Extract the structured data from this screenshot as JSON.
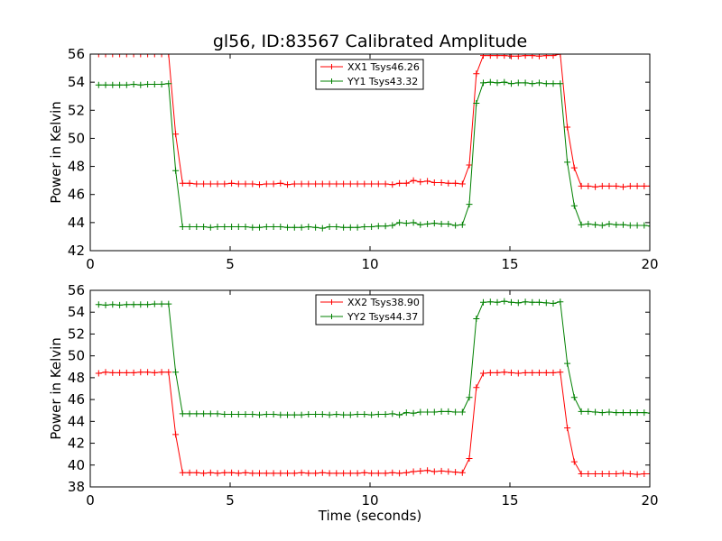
{
  "chart_data": [
    {
      "type": "line",
      "title": "gl56, ID:83567 Calibrated Amplitude",
      "xlabel": "",
      "ylabel": "Power in Kelvin",
      "xlim": [
        0,
        20
      ],
      "ylim": [
        42,
        56
      ],
      "xticks": [
        0,
        5,
        10,
        15,
        20
      ],
      "yticks": [
        42,
        44,
        46,
        48,
        50,
        52,
        54,
        56
      ],
      "legend": "top-center",
      "x": [
        0.3,
        0.55,
        0.8,
        1.05,
        1.3,
        1.55,
        1.8,
        2.05,
        2.3,
        2.55,
        2.8,
        3.05,
        3.3,
        3.55,
        3.8,
        4.05,
        4.3,
        4.55,
        4.8,
        5.05,
        5.3,
        5.55,
        5.8,
        6.05,
        6.3,
        6.55,
        6.8,
        7.05,
        7.3,
        7.55,
        7.8,
        8.05,
        8.3,
        8.55,
        8.8,
        9.05,
        9.3,
        9.55,
        9.8,
        10.05,
        10.3,
        10.55,
        10.8,
        11.05,
        11.3,
        11.55,
        11.8,
        12.05,
        12.3,
        12.55,
        12.8,
        13.05,
        13.3,
        13.55,
        13.8,
        14.05,
        14.3,
        14.55,
        14.8,
        15.05,
        15.3,
        15.55,
        15.8,
        16.05,
        16.3,
        16.55,
        16.8,
        17.05,
        17.3,
        17.55,
        17.8,
        18.05,
        18.3,
        18.55,
        18.8,
        19.05,
        19.3,
        19.55,
        19.8,
        20.05
      ],
      "series": [
        {
          "name": "XX1 Tsys46.26",
          "color": "#ff0000",
          "values": [
            56.0,
            56.0,
            56.0,
            56.0,
            56.0,
            56.0,
            56.0,
            56.0,
            56.0,
            56.0,
            56.0,
            50.3,
            46.8,
            46.8,
            46.75,
            46.75,
            46.75,
            46.75,
            46.75,
            46.8,
            46.75,
            46.75,
            46.75,
            46.7,
            46.75,
            46.75,
            46.8,
            46.7,
            46.75,
            46.75,
            46.75,
            46.75,
            46.75,
            46.75,
            46.75,
            46.75,
            46.75,
            46.75,
            46.75,
            46.75,
            46.75,
            46.75,
            46.7,
            46.8,
            46.8,
            47.0,
            46.9,
            46.95,
            46.85,
            46.85,
            46.8,
            46.8,
            46.75,
            48.1,
            54.6,
            55.9,
            55.9,
            55.9,
            55.9,
            55.85,
            55.85,
            55.9,
            55.9,
            55.85,
            55.9,
            55.9,
            56.0,
            50.8,
            47.9,
            46.6,
            46.6,
            46.55,
            46.6,
            46.6,
            46.6,
            46.55,
            46.6,
            46.6,
            46.6,
            46.6
          ]
        },
        {
          "name": "YY1 Tsys43.32",
          "color": "#008000",
          "values": [
            53.8,
            53.8,
            53.8,
            53.8,
            53.8,
            53.85,
            53.8,
            53.85,
            53.85,
            53.85,
            53.9,
            47.7,
            43.7,
            43.7,
            43.7,
            43.7,
            43.65,
            43.7,
            43.7,
            43.7,
            43.7,
            43.7,
            43.65,
            43.65,
            43.7,
            43.7,
            43.7,
            43.65,
            43.65,
            43.65,
            43.7,
            43.65,
            43.6,
            43.7,
            43.7,
            43.65,
            43.65,
            43.65,
            43.7,
            43.7,
            43.75,
            43.75,
            43.8,
            44.0,
            43.95,
            44.0,
            43.85,
            43.9,
            43.95,
            43.9,
            43.9,
            43.8,
            43.85,
            45.3,
            52.5,
            53.95,
            54.0,
            53.95,
            54.0,
            53.9,
            53.95,
            53.95,
            53.9,
            53.95,
            53.9,
            53.9,
            53.9,
            48.3,
            45.2,
            43.85,
            43.9,
            43.85,
            43.8,
            43.9,
            43.85,
            43.85,
            43.8,
            43.8,
            43.8,
            43.75
          ]
        }
      ]
    },
    {
      "type": "line",
      "title": "",
      "xlabel": "Time (seconds)",
      "ylabel": "Power in Kelvin",
      "xlim": [
        0,
        20
      ],
      "ylim": [
        38,
        56
      ],
      "xticks": [
        0,
        5,
        10,
        15,
        20
      ],
      "yticks": [
        38,
        40,
        42,
        44,
        46,
        48,
        50,
        52,
        54,
        56
      ],
      "legend": "top-center",
      "x": [
        0.3,
        0.55,
        0.8,
        1.05,
        1.3,
        1.55,
        1.8,
        2.05,
        2.3,
        2.55,
        2.8,
        3.05,
        3.3,
        3.55,
        3.8,
        4.05,
        4.3,
        4.55,
        4.8,
        5.05,
        5.3,
        5.55,
        5.8,
        6.05,
        6.3,
        6.55,
        6.8,
        7.05,
        7.3,
        7.55,
        7.8,
        8.05,
        8.3,
        8.55,
        8.8,
        9.05,
        9.3,
        9.55,
        9.8,
        10.05,
        10.3,
        10.55,
        10.8,
        11.05,
        11.3,
        11.55,
        11.8,
        12.05,
        12.3,
        12.55,
        12.8,
        13.05,
        13.3,
        13.55,
        13.8,
        14.05,
        14.3,
        14.55,
        14.8,
        15.05,
        15.3,
        15.55,
        15.8,
        16.05,
        16.3,
        16.55,
        16.8,
        17.05,
        17.3,
        17.55,
        17.8,
        18.05,
        18.3,
        18.55,
        18.8,
        19.05,
        19.3,
        19.55,
        19.8,
        20.05
      ],
      "series": [
        {
          "name": "XX2 Tsys38.90",
          "color": "#ff0000",
          "values": [
            48.4,
            48.5,
            48.45,
            48.45,
            48.45,
            48.45,
            48.5,
            48.5,
            48.45,
            48.5,
            48.5,
            42.8,
            39.3,
            39.3,
            39.3,
            39.25,
            39.3,
            39.25,
            39.3,
            39.3,
            39.25,
            39.3,
            39.25,
            39.25,
            39.25,
            39.25,
            39.25,
            39.25,
            39.25,
            39.3,
            39.25,
            39.25,
            39.3,
            39.25,
            39.25,
            39.25,
            39.25,
            39.25,
            39.3,
            39.25,
            39.25,
            39.25,
            39.3,
            39.25,
            39.3,
            39.4,
            39.45,
            39.5,
            39.4,
            39.45,
            39.4,
            39.35,
            39.3,
            40.6,
            47.1,
            48.4,
            48.45,
            48.45,
            48.5,
            48.45,
            48.4,
            48.45,
            48.45,
            48.45,
            48.45,
            48.45,
            48.5,
            43.4,
            40.3,
            39.2,
            39.2,
            39.2,
            39.2,
            39.2,
            39.2,
            39.25,
            39.2,
            39.15,
            39.2,
            39.2
          ]
        },
        {
          "name": "YY2 Tsys44.37",
          "color": "#008000",
          "values": [
            54.7,
            54.65,
            54.7,
            54.65,
            54.7,
            54.7,
            54.7,
            54.7,
            54.75,
            54.75,
            54.75,
            48.5,
            44.7,
            44.7,
            44.7,
            44.7,
            44.7,
            44.7,
            44.65,
            44.65,
            44.65,
            44.65,
            44.65,
            44.6,
            44.65,
            44.65,
            44.6,
            44.6,
            44.6,
            44.6,
            44.65,
            44.65,
            44.65,
            44.6,
            44.65,
            44.6,
            44.6,
            44.65,
            44.65,
            44.6,
            44.65,
            44.65,
            44.7,
            44.6,
            44.8,
            44.75,
            44.85,
            44.85,
            44.85,
            44.9,
            44.9,
            44.85,
            44.85,
            46.2,
            53.4,
            54.9,
            54.95,
            54.9,
            55.0,
            54.9,
            54.85,
            54.95,
            54.9,
            54.9,
            54.85,
            54.8,
            54.95,
            49.3,
            46.2,
            44.9,
            44.9,
            44.85,
            44.8,
            44.85,
            44.8,
            44.8,
            44.8,
            44.8,
            44.8,
            44.75
          ]
        }
      ]
    }
  ]
}
